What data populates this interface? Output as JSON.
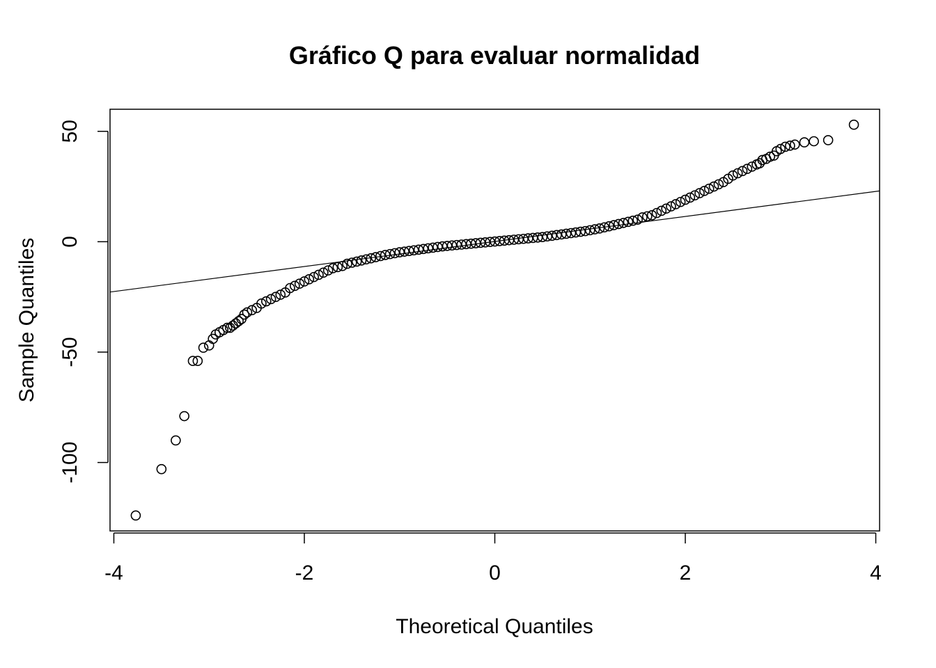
{
  "chart_data": {
    "type": "scatter",
    "title": "Gráfico Q para evaluar normalidad",
    "xlabel": "Theoretical Quantiles",
    "ylabel": "Sample Quantiles",
    "xlim": [
      -4.04,
      4.04
    ],
    "ylim": [
      -131,
      60
    ],
    "xticks": [
      -4,
      -2,
      0,
      2,
      4
    ],
    "xtick_labels": [
      "-4",
      "-2",
      "0",
      "2",
      "4"
    ],
    "yticks": [
      -100,
      -50,
      0,
      50
    ],
    "ytick_labels": [
      "-100",
      "-50",
      "0",
      "50"
    ],
    "grid": false,
    "legend": "none",
    "reference_line": {
      "x": [
        -4.04,
        4.04
      ],
      "y": [
        -22.8,
        23.0
      ]
    },
    "series": [
      {
        "points": {
          "x": [
            -3.77,
            -3.5,
            -3.35,
            -3.26,
            -3.17,
            -3.12,
            -3.06,
            -3.0,
            -2.96,
            -2.93,
            -2.89,
            -2.85,
            -2.81,
            -2.78,
            -2.75,
            -2.72,
            -2.69,
            -2.66,
            -2.63,
            -2.6,
            -2.55,
            -2.5,
            -2.45,
            -2.4,
            -2.35,
            -2.3,
            -2.25,
            -2.2,
            -2.15,
            -2.1,
            -2.05,
            -2.0,
            -1.95,
            -1.9,
            -1.85,
            -1.8,
            -1.75,
            -1.7,
            -1.65,
            -1.6,
            -1.55,
            -1.5,
            -1.45,
            -1.4,
            -1.35,
            -1.3,
            -1.25,
            -1.2,
            -1.15,
            -1.1,
            -1.05,
            -1.0,
            -0.95,
            -0.9,
            -0.85,
            -0.8,
            -0.75,
            -0.7,
            -0.65,
            -0.6,
            -0.55,
            -0.5,
            -0.45,
            -0.4,
            -0.35,
            -0.3,
            -0.25,
            -0.2,
            -0.15,
            -0.1,
            -0.05,
            0.0,
            0.05,
            0.1,
            0.15,
            0.2,
            0.25,
            0.3,
            0.35,
            0.4,
            0.45,
            0.5,
            0.55,
            0.6,
            0.65,
            0.7,
            0.75,
            0.8,
            0.85,
            0.9,
            0.95,
            1.0,
            1.05,
            1.1,
            1.15,
            1.2,
            1.25,
            1.3,
            1.35,
            1.4,
            1.45,
            1.5,
            1.55,
            1.6,
            1.65,
            1.7,
            1.75,
            1.8,
            1.85,
            1.9,
            1.95,
            2.0,
            2.05,
            2.1,
            2.15,
            2.2,
            2.25,
            2.3,
            2.35,
            2.4,
            2.45,
            2.5,
            2.55,
            2.6,
            2.65,
            2.7,
            2.75,
            2.78,
            2.81,
            2.85,
            2.89,
            2.93,
            2.96,
            3.0,
            3.05,
            3.1,
            3.15,
            3.25,
            3.35,
            3.5,
            3.77
          ],
          "y": [
            -124,
            -103,
            -90,
            -79,
            -54,
            -54,
            -48,
            -47,
            -44,
            -42,
            -41,
            -40,
            -39,
            -39,
            -38,
            -37,
            -36,
            -35,
            -33,
            -32,
            -31,
            -30,
            -28,
            -27,
            -26,
            -25,
            -24,
            -23,
            -21,
            -20,
            -19,
            -18,
            -17,
            -16,
            -15,
            -14,
            -13,
            -12,
            -11.5,
            -11,
            -10,
            -9.5,
            -9,
            -8.5,
            -8,
            -7.5,
            -7,
            -6.5,
            -6,
            -5.6,
            -5.2,
            -4.8,
            -4.5,
            -4.2,
            -3.9,
            -3.6,
            -3.3,
            -3.0,
            -2.7,
            -2.4,
            -2.1,
            -1.9,
            -1.7,
            -1.5,
            -1.3,
            -1.1,
            -0.9,
            -0.7,
            -0.5,
            -0.3,
            -0.1,
            0.1,
            0.3,
            0.5,
            0.7,
            0.9,
            1.1,
            1.3,
            1.5,
            1.7,
            1.9,
            2.1,
            2.4,
            2.7,
            3.0,
            3.3,
            3.6,
            3.9,
            4.2,
            4.5,
            4.8,
            5.2,
            5.6,
            6.0,
            6.5,
            7.0,
            7.5,
            8.0,
            8.5,
            9.0,
            9.5,
            10.0,
            11.0,
            11.5,
            12.0,
            13.0,
            14.0,
            15.0,
            16.0,
            17.0,
            18.0,
            19.0,
            20.0,
            21.0,
            22.0,
            23.0,
            24.0,
            25.0,
            26.0,
            27.0,
            28.5,
            30.0,
            31.0,
            32.0,
            33.0,
            34.0,
            35.0,
            35.5,
            37.0,
            37.5,
            38.5,
            39.0,
            41.0,
            42.0,
            43.0,
            43.5,
            44.0,
            45.0,
            45.5,
            46.0,
            53.0
          ]
        }
      }
    ]
  }
}
